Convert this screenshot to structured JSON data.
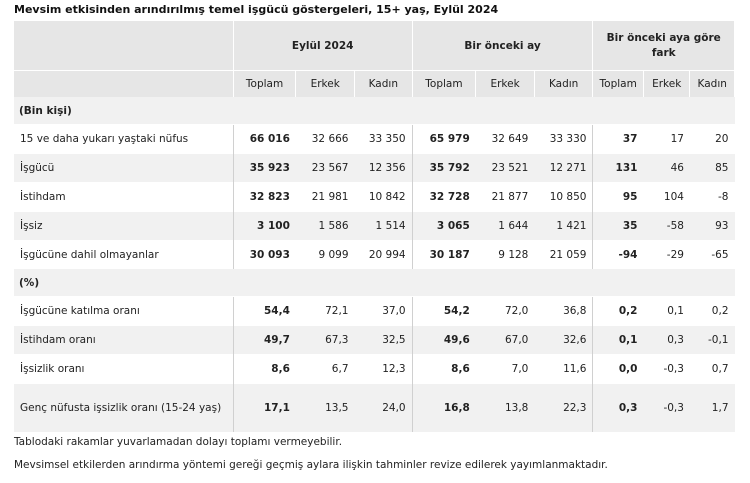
{
  "title": "Mevsim etkisinden arındırılmış temel işgücü göstergeleri, 15+ yaş, Eylül 2024",
  "groups": [
    "Eylül 2024",
    "Bir önceki ay",
    "Bir önceki aya göre fark"
  ],
  "subheaders": [
    "Toplam",
    "Erkek",
    "Kadın",
    "Toplam",
    "Erkek",
    "Kadın",
    "Toplam",
    "Erkek",
    "Kadın"
  ],
  "section1": "(Bin kişi)",
  "section2": "(%)",
  "rows1": [
    {
      "label": "15 ve daha yukarı yaştaki nüfus",
      "v": [
        "66 016",
        "32 666",
        "33 350",
        "65 979",
        "32 649",
        "33 330",
        "37",
        "17",
        "20"
      ]
    },
    {
      "label": "İşgücü",
      "v": [
        "35 923",
        "23 567",
        "12 356",
        "35 792",
        "23 521",
        "12 271",
        "131",
        "46",
        "85"
      ]
    },
    {
      "label": "İstihdam",
      "v": [
        "32 823",
        "21 981",
        "10 842",
        "32 728",
        "21 877",
        "10 850",
        "95",
        "104",
        "-8"
      ]
    },
    {
      "label": "İşsiz",
      "v": [
        "3 100",
        "1 586",
        "1 514",
        "3 065",
        "1 644",
        "1 421",
        "35",
        "-58",
        "93"
      ]
    },
    {
      "label": "İşgücüne dahil olmayanlar",
      "v": [
        "30 093",
        "9 099",
        "20 994",
        "30 187",
        "9 128",
        "21 059",
        "-94",
        "-29",
        "-65"
      ]
    }
  ],
  "rows2": [
    {
      "label": "İşgücüne katılma oranı",
      "v": [
        "54,4",
        "72,1",
        "37,0",
        "54,2",
        "72,0",
        "36,8",
        "0,2",
        "0,1",
        "0,2"
      ]
    },
    {
      "label": "İstihdam oranı",
      "v": [
        "49,7",
        "67,3",
        "32,5",
        "49,6",
        "67,0",
        "32,6",
        "0,1",
        "0,3",
        "-0,1"
      ]
    },
    {
      "label": "İşsizlik oranı",
      "v": [
        "8,6",
        "6,7",
        "12,3",
        "8,6",
        "7,0",
        "11,6",
        "0,0",
        "-0,3",
        "0,7"
      ]
    },
    {
      "label": "Genç nüfusta işsizlik oranı (15-24 yaş)",
      "v": [
        "17,1",
        "13,5",
        "24,0",
        "16,8",
        "13,8",
        "22,3",
        "0,3",
        "-0,3",
        "1,7"
      ]
    }
  ],
  "notes": [
    "Tablodaki rakamlar yuvarlamadan dolayı toplamı vermeyebilir.",
    "Mevsimsel etkilerden arındırma yöntemi gereği geçmiş aylara ilişkin tahminler revize edilerek yayımlanmaktadır."
  ]
}
